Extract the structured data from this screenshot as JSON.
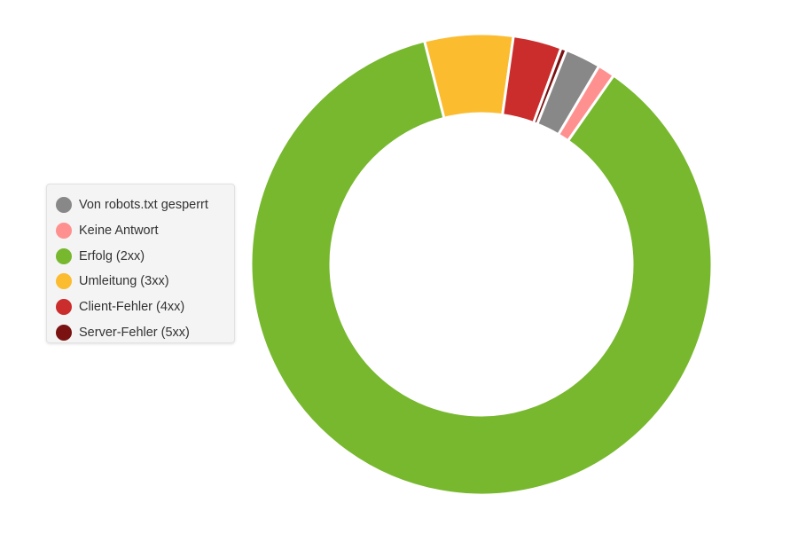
{
  "chart_data": {
    "type": "pie",
    "variant": "donut",
    "title": "",
    "legend_position": "left",
    "categories": [
      "Von robots.txt gesperrt",
      "Keine Antwort",
      "Erfolg (2xx)",
      "Umleitung (3xx)",
      "Client-Fehler (4xx)",
      "Server-Fehler (5xx)"
    ],
    "colors": [
      "#888888",
      "#ff9090",
      "#77b82e",
      "#fbbc30",
      "#cb2c2c",
      "#7a1212"
    ],
    "values": [
      2.5,
      1.2,
      86.3,
      6.2,
      3.4,
      0.4
    ],
    "drawing_order": [
      2,
      3,
      4,
      5,
      0,
      1
    ]
  }
}
